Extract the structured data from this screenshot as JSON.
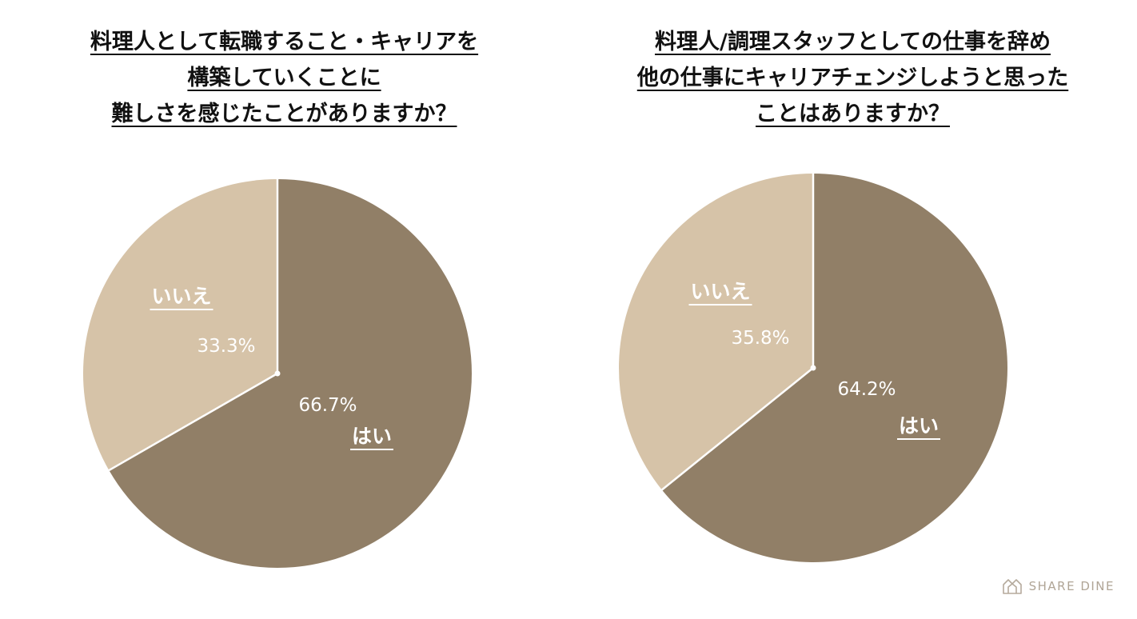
{
  "colors": {
    "yes": "#917F67",
    "no": "#D6C3A8",
    "divider": "#ffffff"
  },
  "chart_data": [
    {
      "type": "pie",
      "title_lines": [
        "料理人として転職すること・キャリアを",
        "構築していくことに",
        "難しさを感じたことがありますか？"
      ],
      "slices": [
        {
          "label": "はい",
          "value": 66.7,
          "value_label": "66.7%",
          "color": "#917F67"
        },
        {
          "label": "いいえ",
          "value": 33.3,
          "value_label": "33.3%",
          "color": "#D6C3A8"
        }
      ],
      "start": "12 o'clock",
      "direction": "clockwise"
    },
    {
      "type": "pie",
      "title_lines": [
        "料理人/調理スタッフとしての仕事を辞め",
        "他の仕事にキャリアチェンジしようと思った",
        "ことはありますか？"
      ],
      "slices": [
        {
          "label": "はい",
          "value": 64.2,
          "value_label": "64.2%",
          "color": "#917F67"
        },
        {
          "label": "いいえ",
          "value": 35.8,
          "value_label": "35.8%",
          "color": "#D6C3A8"
        }
      ],
      "start": "12 o'clock",
      "direction": "clockwise"
    }
  ],
  "brand": {
    "name": "SHARE DINE",
    "icon": "share-dine-logo-icon"
  }
}
